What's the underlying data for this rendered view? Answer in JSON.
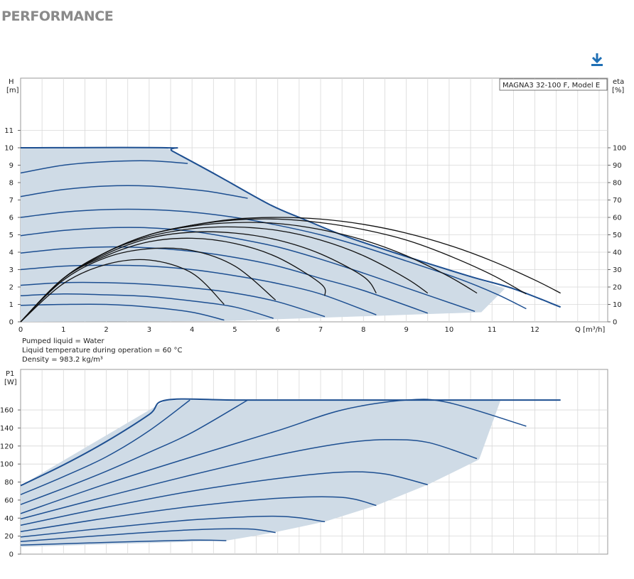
{
  "page": {
    "title": "PERFORMANCE",
    "download_icon": "download-icon"
  },
  "colors": {
    "curve": "#1d4f91",
    "efficiency": "#111111",
    "area_fill": "#cfdbe6",
    "grid": "#d8d8d8",
    "accent": "#1f6fb5"
  },
  "notes": {
    "liquid": "Pumped liquid = Water",
    "temperature": "Liquid temperature during operation = 60 °C",
    "density": "Density = 983.2 kg/m³"
  },
  "chart_data": [
    {
      "type": "line",
      "legend": "MAGNA3 32-100 F, Model E",
      "xlabel": "Q [m³/h]",
      "ylabel_line1": "H",
      "ylabel_line2": "[m]",
      "y2label_line1": "eta",
      "y2label_line2": "[%]",
      "xlim": [
        0,
        13.7
      ],
      "ylim": [
        0,
        14
      ],
      "y2lim": [
        0,
        140
      ],
      "x_ticks": [
        0,
        1,
        2,
        3,
        4,
        5,
        6,
        7,
        8,
        9,
        10,
        11,
        12
      ],
      "y_ticks": [
        0,
        1,
        2,
        3,
        4,
        5,
        6,
        7,
        8,
        9,
        10,
        11
      ],
      "y2_ticks": [
        0,
        10,
        20,
        30,
        40,
        50,
        60,
        70,
        80,
        90,
        100
      ],
      "grid": true,
      "operating_area": {
        "x": [
          0,
          3.4,
          3.55,
          4.6,
          5.8,
          6.6,
          7.6,
          9,
          10.9,
          11.3,
          10.75,
          8.4,
          4.8,
          0
        ],
        "y": [
          10,
          10,
          9.8,
          8.4,
          6.75,
          5.9,
          4.9,
          3.75,
          2.25,
          1.9,
          0.55,
          0.35,
          0.05,
          0
        ]
      },
      "series": [
        {
          "x": [
            0,
            3.4,
            3.55,
            4.6,
            5.8,
            6.6,
            7.6,
            9,
            10.5,
            11.5,
            12.6
          ],
          "y": [
            10,
            10,
            9.8,
            8.4,
            6.75,
            5.9,
            4.9,
            3.75,
            2.6,
            1.9,
            0.85
          ]
        },
        {
          "x": [
            0,
            1,
            2,
            3,
            3.9
          ],
          "y": [
            8.55,
            9,
            9.2,
            9.25,
            9.1
          ]
        },
        {
          "x": [
            0,
            1,
            2,
            3,
            4,
            4.5,
            5.3
          ],
          "y": [
            7.2,
            7.6,
            7.8,
            7.8,
            7.6,
            7.45,
            7.1
          ]
        },
        {
          "x": [
            0,
            1,
            2,
            3,
            4,
            5,
            5.9,
            7,
            8,
            9,
            10.2,
            11.1,
            11.8
          ],
          "y": [
            6,
            6.3,
            6.45,
            6.45,
            6.3,
            6.0,
            5.6,
            5.0,
            4.3,
            3.5,
            2.5,
            1.6,
            0.75
          ]
        },
        {
          "x": [
            0,
            1,
            2,
            3,
            4,
            5,
            6,
            7,
            8,
            9,
            10.6
          ],
          "y": [
            4.95,
            5.25,
            5.4,
            5.4,
            5.2,
            4.8,
            4.3,
            3.6,
            2.8,
            1.95,
            0.6
          ]
        },
        {
          "x": [
            0,
            1,
            2,
            3,
            4,
            5,
            6,
            7,
            8,
            9.5
          ],
          "y": [
            3.95,
            4.2,
            4.3,
            4.25,
            4.05,
            3.7,
            3.2,
            2.5,
            1.8,
            0.5
          ]
        },
        {
          "x": [
            0,
            1,
            2,
            3,
            4,
            5,
            6,
            7,
            8.3
          ],
          "y": [
            3.0,
            3.2,
            3.25,
            3.2,
            3.0,
            2.65,
            2.2,
            1.6,
            0.4
          ]
        },
        {
          "x": [
            0,
            1,
            2,
            3,
            4,
            5,
            6,
            7.1
          ],
          "y": [
            2.1,
            2.25,
            2.25,
            2.15,
            1.95,
            1.65,
            1.15,
            0.3
          ]
        },
        {
          "x": [
            0,
            1,
            2,
            3,
            4,
            5,
            5.9
          ],
          "y": [
            1.5,
            1.6,
            1.55,
            1.45,
            1.2,
            0.85,
            0.2
          ]
        },
        {
          "x": [
            0,
            1,
            2,
            3,
            4,
            4.75
          ],
          "y": [
            0.95,
            1.0,
            1.0,
            0.85,
            0.55,
            0.1
          ]
        }
      ],
      "efficiency_curves": [
        {
          "x": [
            0,
            1,
            2,
            3,
            4,
            5,
            6,
            7,
            8,
            9,
            10,
            11,
            12,
            12.6
          ],
          "y2": [
            0,
            25,
            40,
            50,
            55.5,
            59,
            60,
            59,
            56,
            51,
            44,
            35,
            24,
            16.5
          ]
        },
        {
          "x": [
            0,
            1,
            2,
            3,
            4,
            5,
            6,
            7,
            8,
            9,
            10,
            11,
            11.8
          ],
          "y2": [
            0,
            25,
            40,
            50,
            55.5,
            58.5,
            59,
            57,
            53,
            47,
            38,
            27,
            16
          ]
        },
        {
          "x": [
            0,
            1,
            2,
            3,
            4,
            5,
            6,
            7,
            8,
            9,
            10,
            10.65
          ],
          "y2": [
            0,
            25,
            40,
            50,
            55,
            57,
            56.5,
            53,
            47,
            38,
            26,
            16.5
          ]
        },
        {
          "x": [
            0,
            1,
            2,
            3,
            4,
            5,
            6,
            7,
            8,
            9,
            9.5
          ],
          "y2": [
            0,
            25,
            40,
            49,
            53.5,
            54.5,
            52.5,
            47,
            38,
            25,
            16.5
          ]
        },
        {
          "x": [
            0,
            1,
            2,
            3,
            4,
            5,
            6,
            7,
            8,
            8.3
          ],
          "y2": [
            0,
            25,
            39,
            48,
            51.5,
            51,
            47,
            39,
            26,
            16.5
          ]
        },
        {
          "x": [
            0,
            1,
            2,
            3,
            4,
            5,
            6,
            7,
            7.1
          ],
          "y2": [
            0,
            25,
            38,
            46,
            48,
            45,
            37,
            22,
            15
          ]
        },
        {
          "x": [
            0,
            1,
            2,
            3,
            4,
            5,
            5.95
          ],
          "y2": [
            0,
            24,
            37,
            42,
            41,
            32,
            12.5
          ]
        },
        {
          "x": [
            0,
            1,
            2,
            3,
            4,
            4.75
          ],
          "y2": [
            0,
            22,
            33,
            35.5,
            28,
            10
          ]
        }
      ]
    },
    {
      "type": "line",
      "xlabel": "",
      "ylabel_line1": "P1",
      "ylabel_line2": "[W]",
      "xlim": [
        0,
        13.7
      ],
      "ylim": [
        0,
        205
      ],
      "y_ticks": [
        0,
        20,
        40,
        60,
        80,
        100,
        120,
        140,
        160
      ],
      "grid": true,
      "operating_area": {
        "x": [
          0,
          3.4,
          11.2,
          10.7,
          9.5,
          8.3,
          7.1,
          5.9,
          4.8,
          0
        ],
        "y": [
          76,
          171,
          171,
          105,
          77,
          54,
          36,
          24,
          15,
          8
        ]
      },
      "series": [
        {
          "x": [
            0,
            1,
            2,
            3,
            3.4,
            5,
            7,
            9,
            11,
            12.6
          ],
          "y": [
            76,
            99,
            125,
            155,
            171,
            171,
            171,
            171,
            171,
            171
          ]
        },
        {
          "x": [
            0,
            1,
            2,
            3,
            3.95
          ],
          "y": [
            66,
            86,
            108,
            137,
            171
          ]
        },
        {
          "x": [
            0,
            1,
            2,
            3,
            4,
            5.3
          ],
          "y": [
            55,
            73,
            92,
            113,
            135,
            171
          ]
        },
        {
          "x": [
            0,
            2,
            4,
            6,
            7.5,
            9,
            10,
            11.8
          ],
          "y": [
            45,
            78,
            108,
            137,
            160,
            171,
            168,
            142
          ]
        },
        {
          "x": [
            0,
            2,
            4,
            6,
            7.5,
            8.5,
            9.5,
            10.65
          ],
          "y": [
            39,
            64,
            88,
            110,
            123,
            127,
            124,
            106
          ]
        },
        {
          "x": [
            0,
            2,
            4,
            6,
            7.5,
            8.5,
            9.5
          ],
          "y": [
            32,
            52,
            70,
            84,
            91,
            89,
            77
          ]
        },
        {
          "x": [
            0,
            2,
            4,
            6,
            7.5,
            8.3
          ],
          "y": [
            25,
            40,
            53,
            62,
            63,
            54
          ]
        },
        {
          "x": [
            0,
            2,
            4,
            6,
            7.1
          ],
          "y": [
            19,
            29,
            38,
            42,
            36
          ]
        },
        {
          "x": [
            0,
            2,
            4,
            5.3,
            5.95
          ],
          "y": [
            14,
            21,
            27,
            28,
            24
          ]
        },
        {
          "x": [
            0,
            2,
            4,
            4.8
          ],
          "y": [
            10,
            13,
            15.5,
            15
          ]
        }
      ]
    }
  ]
}
